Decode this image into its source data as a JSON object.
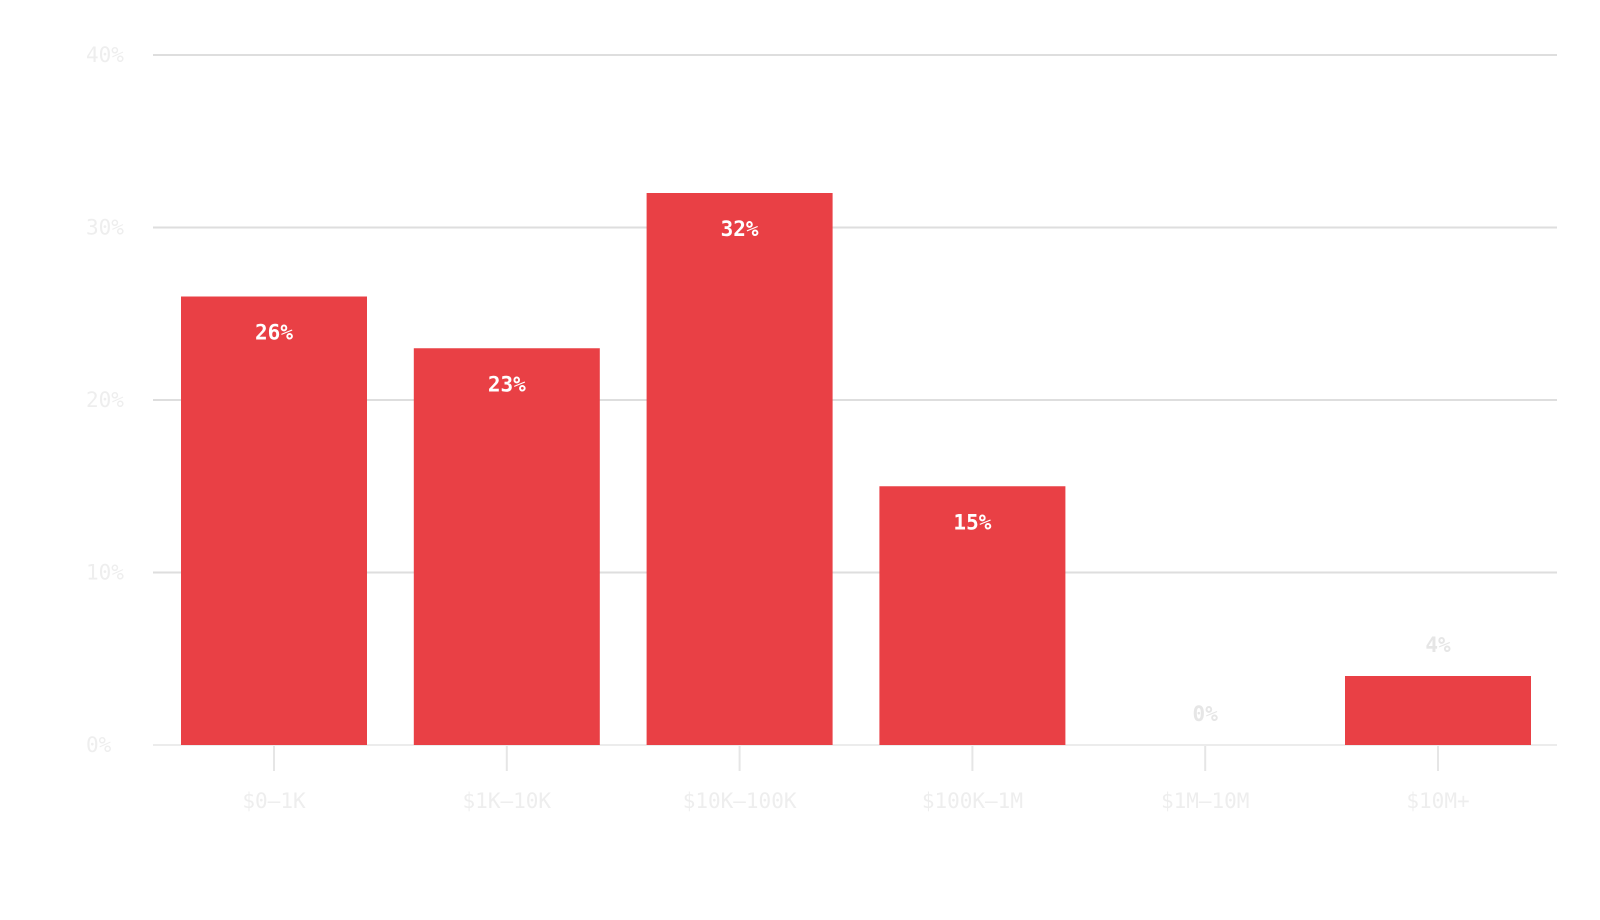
{
  "chart_data": {
    "type": "bar",
    "categories": [
      "$0–1K",
      "$1K–10K",
      "$10K–100K",
      "$100K–1M",
      "$1M–10M",
      "$10M+"
    ],
    "values": [
      26,
      23,
      32,
      15,
      0,
      4
    ],
    "data_labels": [
      "26%",
      "23%",
      "32%",
      "15%",
      "0%",
      "4%"
    ],
    "ylim": [
      0,
      40
    ],
    "yticks": [
      0,
      10,
      20,
      30,
      40
    ],
    "ytick_labels": [
      "0%",
      "10%",
      "20%",
      "30%",
      "40%"
    ],
    "grid": true,
    "title": "",
    "xlabel": "",
    "ylabel": ""
  },
  "colors": {
    "bar": "#e94045",
    "grid": "#dedede",
    "axis_text": "#eeeeee",
    "inside_label": "#ffffff",
    "outside_label": "#e6e6e6"
  }
}
